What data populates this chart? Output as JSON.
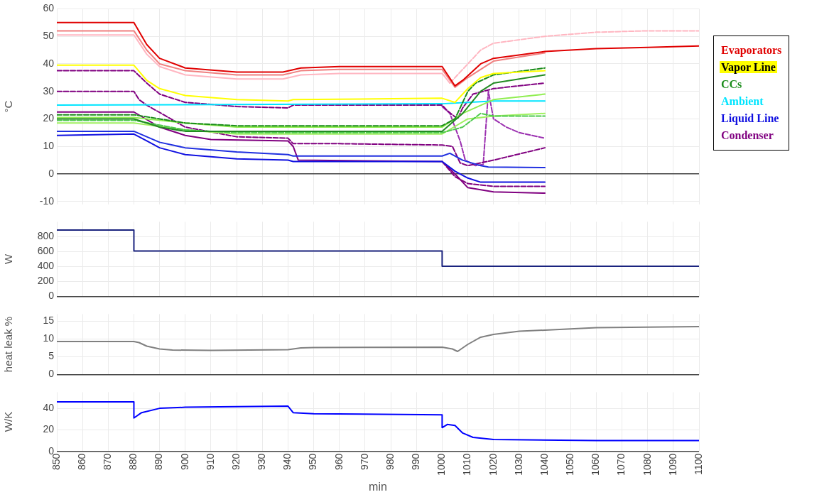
{
  "chart_data": [
    {
      "type": "line",
      "ylabel": "°C",
      "xlim": [
        850,
        1100
      ],
      "xticks": [
        850,
        860,
        870,
        880,
        890,
        900,
        910,
        920,
        930,
        940,
        950,
        960,
        970,
        980,
        990,
        1000,
        1010,
        1020,
        1030,
        1040,
        1050,
        1060,
        1070,
        1080,
        1090,
        1100
      ],
      "ylim": [
        -11,
        60
      ],
      "yticks": [
        -10,
        0,
        10,
        20,
        30,
        40,
        50,
        60
      ],
      "grid": true,
      "legend": "right",
      "tick_labels": "y",
      "marker": "none",
      "series": [
        {
          "name": "Evaporators",
          "color": "#e00000",
          "x": [
            850,
            880,
            885,
            890,
            900,
            920,
            938,
            945,
            960,
            1000,
            1005,
            1008,
            1015,
            1020,
            1040,
            1060,
            1080,
            1100
          ],
          "values": [
            55,
            55,
            47,
            42,
            38.5,
            37,
            37,
            38.5,
            39,
            39,
            32,
            34,
            40,
            42,
            44.5,
            45.5,
            46,
            46.5
          ]
        },
        {
          "color": "#f08080",
          "x": [
            850,
            880,
            885,
            890,
            900,
            920,
            938,
            945,
            960,
            1000,
            1005,
            1010,
            1020,
            1040
          ],
          "values": [
            52,
            52,
            45,
            40,
            37.5,
            36,
            36,
            37.5,
            38,
            38,
            31.5,
            35,
            41,
            44
          ]
        },
        {
          "color": "#ffb6c1",
          "x": [
            850,
            880,
            885,
            890,
            900,
            920,
            938,
            945,
            960,
            1000,
            1003
          ],
          "values": [
            50.5,
            50.5,
            43.5,
            39,
            36,
            34.5,
            34.5,
            36,
            36.5,
            36.5,
            33
          ]
        },
        {
          "color": "#ffb6c1",
          "line_style": "dashed",
          "x": [
            1003,
            1010,
            1015,
            1020,
            1040,
            1060,
            1080,
            1100
          ],
          "values": [
            33,
            40,
            45,
            47.5,
            50,
            51.5,
            52,
            52
          ]
        },
        {
          "name": "Vapor Line",
          "color": "#ffff00",
          "x": [
            850,
            880,
            885,
            890,
            900,
            920,
            940,
            942,
            1000,
            1005,
            1010,
            1015,
            1020,
            1040
          ],
          "values": [
            39.5,
            39.5,
            34,
            31,
            28.5,
            27,
            26.5,
            27,
            27.5,
            26,
            31,
            35,
            36.5,
            37.5
          ]
        },
        {
          "name": "CCs",
          "color": "#1a8c1a",
          "line_style": "dashed",
          "x": [
            850,
            880,
            890,
            900,
            920,
            1000,
            1005,
            1010,
            1013,
            1020,
            1040
          ],
          "values": [
            21.5,
            21.5,
            20,
            18.5,
            17.5,
            17.5,
            20,
            30,
            33,
            36,
            38.5
          ]
        },
        {
          "color": "#228b22",
          "x": [
            850,
            880,
            890,
            900,
            1000,
            1008,
            1015,
            1020,
            1040
          ],
          "values": [
            20,
            20,
            17,
            15.5,
            15.5,
            22,
            30,
            33,
            36
          ]
        },
        {
          "color": "#90ee50",
          "x": [
            850,
            880,
            900,
            920,
            1000,
            1008,
            1020,
            1040
          ],
          "values": [
            20.5,
            20.5,
            18.5,
            17,
            17,
            22,
            27,
            29
          ]
        },
        {
          "color": "#4cc94c",
          "line_style": "dashed",
          "x": [
            850,
            880,
            900,
            920,
            1000,
            1008,
            1015,
            1020,
            1040
          ],
          "values": [
            19.5,
            19.5,
            16,
            15,
            15,
            17,
            22,
            21,
            21
          ]
        },
        {
          "color": "#a0f060",
          "x": [
            850,
            880,
            900,
            920,
            1000,
            1010,
            1020,
            1040
          ],
          "values": [
            18.5,
            18.5,
            16,
            14.5,
            14.5,
            20,
            21,
            22
          ]
        },
        {
          "name": "Ambient",
          "color": "#00e5ff",
          "x": [
            850,
            1000,
            1010,
            1020,
            1040
          ],
          "values": [
            25,
            25.5,
            26,
            26.5,
            26.5
          ]
        },
        {
          "name": "Liquid Line",
          "color": "#1010e0",
          "x": [
            850,
            880,
            885,
            890,
            900,
            920,
            940,
            942,
            1000,
            1005,
            1010,
            1015,
            1020,
            1040
          ],
          "values": [
            14,
            14.5,
            12,
            9.5,
            7,
            5.5,
            5,
            4.5,
            4.5,
            1,
            -1.5,
            -3,
            -3,
            -3
          ]
        },
        {
          "color": "#2030e0",
          "x": [
            850,
            880,
            890,
            900,
            920,
            940,
            942,
            1000,
            1003,
            1008,
            1015,
            1018,
            1040
          ],
          "values": [
            15.5,
            15.5,
            11.5,
            9.5,
            8,
            7,
            6.5,
            6.5,
            7.5,
            5,
            3,
            2.5,
            2.3
          ]
        },
        {
          "name": "Condenser",
          "color": "#800080",
          "line_style": "dashed",
          "x": [
            850,
            880,
            885,
            890,
            900,
            920,
            940,
            942,
            1000,
            1002,
            1006,
            1008,
            1012,
            1020,
            1040
          ],
          "values": [
            37.5,
            37.5,
            33,
            29,
            26,
            24.5,
            24,
            25,
            25,
            23,
            20,
            24,
            29,
            31,
            33
          ]
        },
        {
          "color": "#800080",
          "line_style": "dashed",
          "x": [
            850,
            880,
            882,
            885,
            900,
            920,
            940,
            942,
            960,
            1000,
            1004,
            1007,
            1010,
            1020,
            1040
          ],
          "values": [
            30,
            30,
            27,
            25,
            17,
            13.5,
            13,
            11,
            11,
            10.5,
            10,
            4,
            3,
            5,
            9.5
          ]
        },
        {
          "color": "#800080",
          "x": [
            850,
            880,
            890,
            900,
            910,
            940,
            942,
            944,
            1000,
            1005,
            1010,
            1020,
            1040
          ],
          "values": [
            22.5,
            22.5,
            17,
            14,
            12.5,
            12,
            10,
            5,
            4.5,
            0,
            -5,
            -6.5,
            -7
          ]
        },
        {
          "color": "#9b30b0",
          "line_style": "dashed",
          "x": [
            1000,
            1003,
            1007,
            1009,
            1013,
            1016,
            1018,
            1020,
            1025,
            1030,
            1040
          ],
          "values": [
            24.5,
            22,
            12,
            5,
            3,
            3.5,
            30,
            20,
            17,
            15,
            13
          ]
        },
        {
          "color": "#800080",
          "line_style": "dashed",
          "x": [
            1000,
            1005,
            1010,
            1020,
            1040
          ],
          "values": [
            4.5,
            -1,
            -3.5,
            -4.5,
            -4.5
          ]
        }
      ]
    },
    {
      "type": "line",
      "ylabel": "W",
      "xlim": [
        850,
        1100
      ],
      "xticks": [
        850,
        860,
        870,
        880,
        890,
        900,
        910,
        920,
        930,
        940,
        950,
        960,
        970,
        980,
        990,
        1000,
        1010,
        1020,
        1030,
        1040,
        1050,
        1060,
        1070,
        1080,
        1090,
        1100
      ],
      "ylim": [
        0,
        1000
      ],
      "yticks": [
        0,
        200,
        400,
        600,
        800
      ],
      "grid": true,
      "tick_labels": "y",
      "marker": "none",
      "series": [
        {
          "color": "#1a237e",
          "x": [
            850,
            880,
            880,
            1000,
            1000,
            1100
          ],
          "values": [
            890,
            890,
            610,
            610,
            405,
            405
          ]
        }
      ]
    },
    {
      "type": "line",
      "ylabel": "heat leak %",
      "xlim": [
        850,
        1100
      ],
      "xticks": [
        850,
        860,
        870,
        880,
        890,
        900,
        910,
        920,
        930,
        940,
        950,
        960,
        970,
        980,
        990,
        1000,
        1010,
        1020,
        1030,
        1040,
        1050,
        1060,
        1070,
        1080,
        1090,
        1100
      ],
      "ylim": [
        0,
        17
      ],
      "yticks": [
        0,
        5,
        10,
        15
      ],
      "grid": true,
      "tick_labels": "y",
      "marker": "none",
      "series": [
        {
          "color": "#808080",
          "x": [
            850,
            880,
            882,
            885,
            890,
            895,
            910,
            940,
            945,
            950,
            1000,
            1004,
            1006,
            1010,
            1015,
            1020,
            1030,
            1040,
            1060,
            1100
          ],
          "values": [
            9.3,
            9.3,
            9,
            8,
            7.2,
            6.9,
            6.8,
            7,
            7.5,
            7.6,
            7.7,
            7.2,
            6.5,
            8.5,
            10.5,
            11.3,
            12.2,
            12.5,
            13.2,
            13.5
          ]
        }
      ]
    },
    {
      "type": "line",
      "ylabel": "W/K",
      "xlabel": "min",
      "xlim": [
        850,
        1100
      ],
      "xticks": [
        850,
        860,
        870,
        880,
        890,
        900,
        910,
        920,
        930,
        940,
        950,
        960,
        970,
        980,
        990,
        1000,
        1010,
        1020,
        1030,
        1040,
        1050,
        1060,
        1070,
        1080,
        1090,
        1100
      ],
      "ylim": [
        0,
        55
      ],
      "yticks": [
        0,
        20,
        40
      ],
      "grid": true,
      "marker": "none",
      "series": [
        {
          "color": "#0000ff",
          "x": [
            850,
            880,
            880,
            883,
            890,
            900,
            940,
            942,
            950,
            1000,
            1000,
            1002,
            1005,
            1008,
            1012,
            1020,
            1060,
            1100
          ],
          "values": [
            46,
            46,
            31,
            36,
            40,
            41,
            42,
            36,
            35,
            34,
            22,
            25,
            24,
            17,
            13,
            11,
            10,
            10
          ]
        }
      ]
    }
  ]
}
